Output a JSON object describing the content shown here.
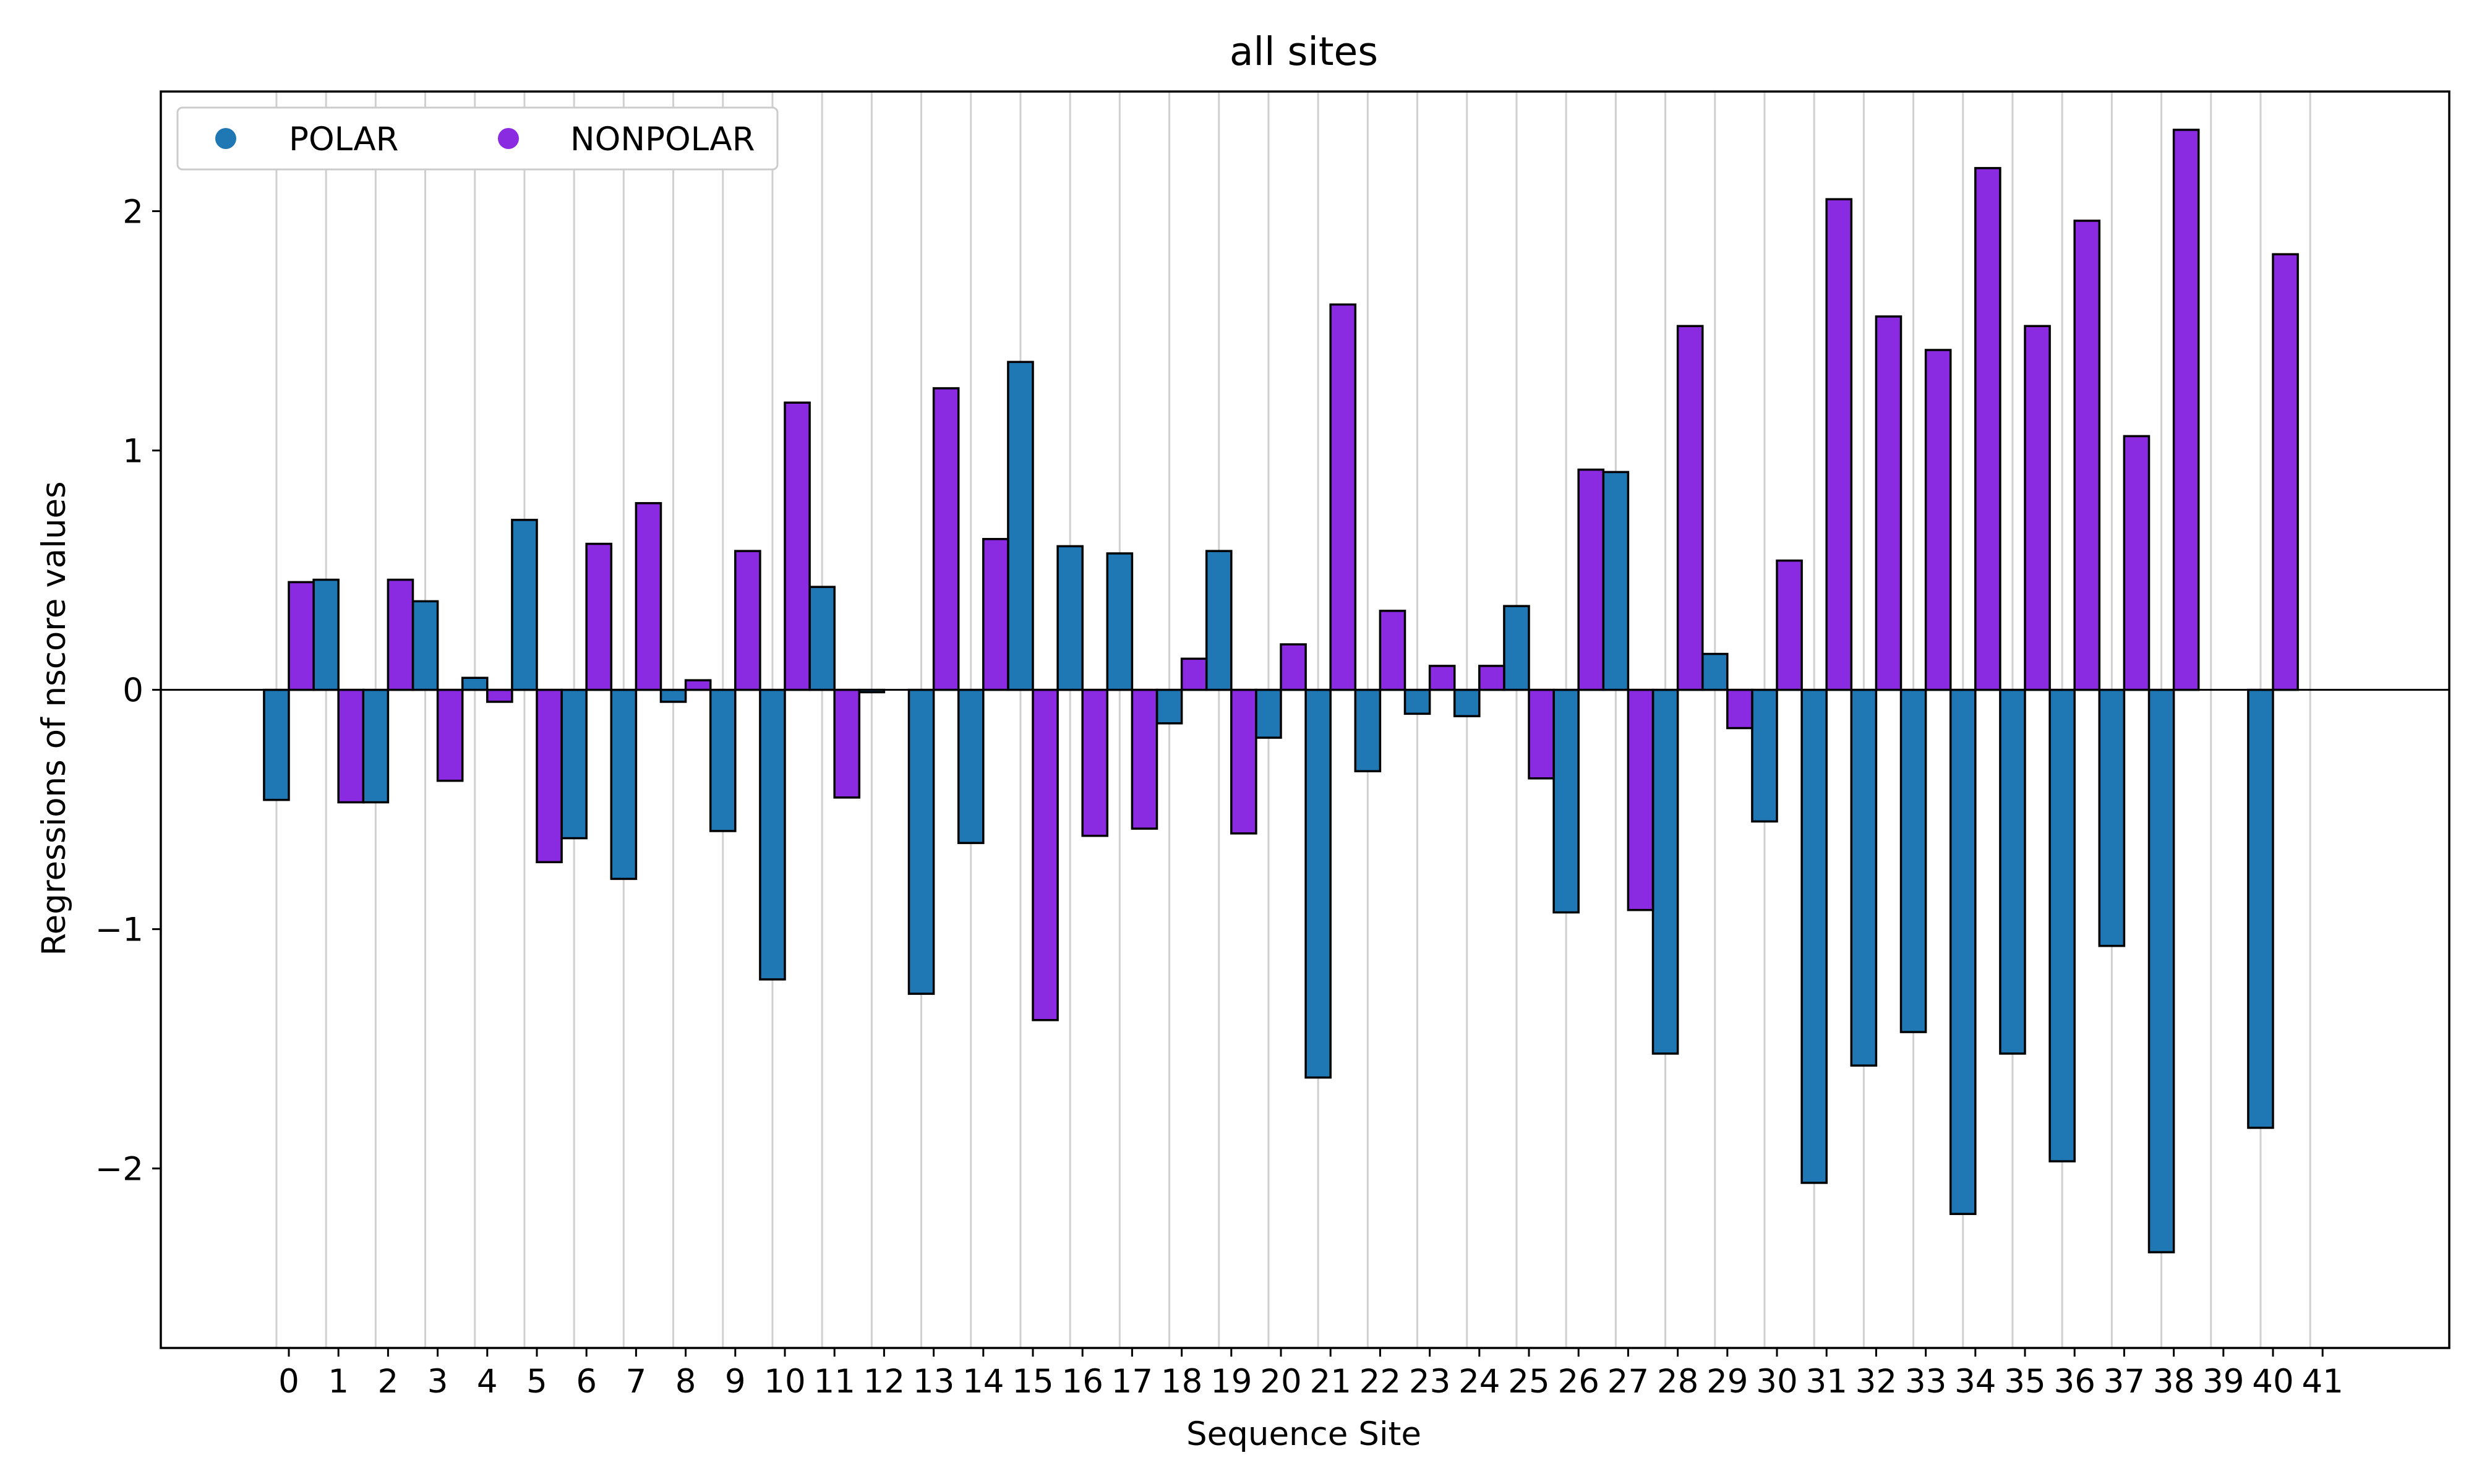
{
  "chart_data": {
    "type": "bar",
    "title": "all sites",
    "xlabel": "Sequence Site",
    "ylabel": "Regressions of nscore values",
    "ylim": [
      -2.75,
      2.5
    ],
    "yticks": [
      -2,
      -1,
      0,
      1,
      2
    ],
    "ytick_labels": [
      "−2",
      "−1",
      "0",
      "1",
      "2"
    ],
    "categories": [
      "0",
      "1",
      "2",
      "3",
      "4",
      "5",
      "6",
      "7",
      "8",
      "9",
      "10",
      "11",
      "12",
      "13",
      "14",
      "15",
      "16",
      "17",
      "18",
      "19",
      "20",
      "21",
      "22",
      "23",
      "24",
      "25",
      "26",
      "27",
      "28",
      "29",
      "30",
      "31",
      "32",
      "33",
      "34",
      "35",
      "36",
      "37",
      "38",
      "39",
      "40",
      "41"
    ],
    "grid": "vertical",
    "legend": {
      "placement": "top-left",
      "columns": 2
    },
    "colors": {
      "POLAR": "#1f77b4",
      "NONPOLAR": "#8a2be2"
    },
    "series": [
      {
        "name": "POLAR",
        "values": [
          -0.46,
          0.46,
          -0.47,
          0.37,
          0.05,
          0.71,
          -0.62,
          -0.79,
          -0.05,
          -0.59,
          -1.21,
          0.43,
          -0.01,
          -1.27,
          -0.64,
          1.37,
          0.6,
          0.57,
          -0.14,
          0.58,
          -0.2,
          -1.62,
          -0.34,
          -0.1,
          -0.11,
          0.35,
          -0.93,
          0.91,
          -1.52,
          0.15,
          -0.55,
          -2.06,
          -1.57,
          -1.43,
          -2.19,
          -1.52,
          -1.97,
          -1.07,
          -2.35,
          null,
          -1.83,
          null
        ]
      },
      {
        "name": "NONPOLAR",
        "values": [
          0.45,
          -0.47,
          0.46,
          -0.38,
          -0.05,
          -0.72,
          0.61,
          0.78,
          0.04,
          0.58,
          1.2,
          -0.45,
          null,
          1.26,
          0.63,
          -1.38,
          -0.61,
          -0.58,
          0.13,
          -0.6,
          0.19,
          1.61,
          0.33,
          0.1,
          0.1,
          -0.37,
          0.92,
          -0.92,
          1.52,
          -0.16,
          0.54,
          2.05,
          1.56,
          1.42,
          2.18,
          1.52,
          1.96,
          1.06,
          2.34,
          null,
          1.82,
          null
        ]
      }
    ]
  }
}
